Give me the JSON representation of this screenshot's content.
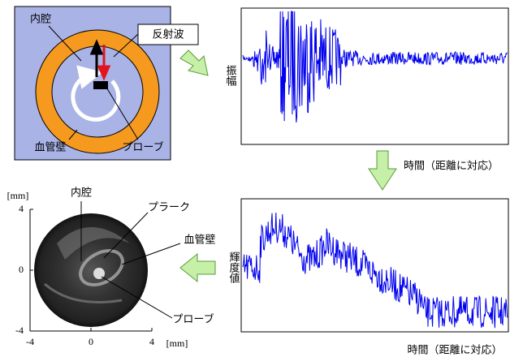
{
  "top_diagram": {
    "lumen": "内腔",
    "reflected_wave": "反射波",
    "vessel_wall": "血管壁",
    "probe": "プローブ"
  },
  "amplitude_plot": {
    "ylabel": "振幅"
  },
  "transform_label": "時間（距離に対応）",
  "brightness_plot": {
    "ylabel": "輝度値",
    "xlabel": "時間（距離に対応）"
  },
  "ivus_image": {
    "lumen": "内腔",
    "plaque": "プラーク",
    "vessel_wall": "血管壁",
    "probe": "プローブ",
    "y_unit": "[mm]",
    "x_unit": "[mm]",
    "xlim": [
      -4,
      4
    ],
    "ylim": [
      -4,
      4
    ],
    "xticks": [
      -4,
      0,
      4
    ],
    "yticks": [
      -4,
      0,
      4
    ]
  }
}
